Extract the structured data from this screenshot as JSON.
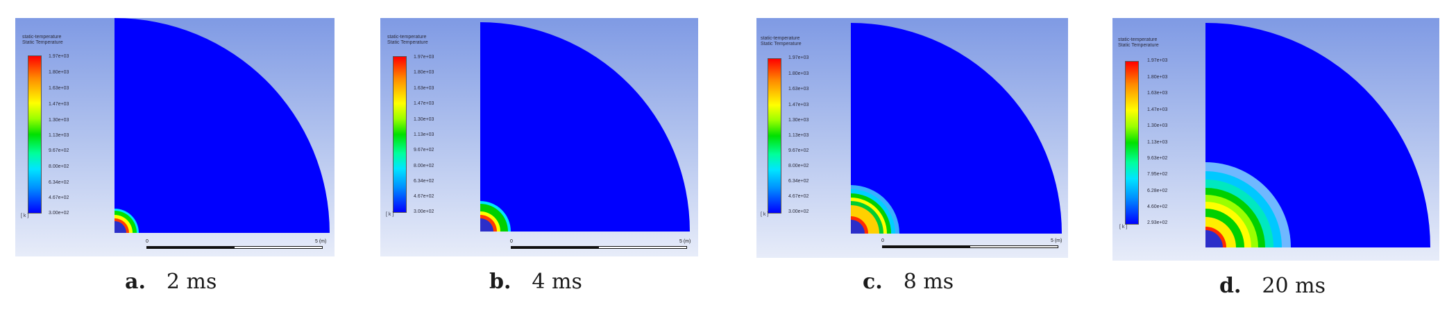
{
  "legend": {
    "title_line1": "static-temperature",
    "title_line2": "Static Temperature",
    "unit": "[ k ]"
  },
  "panels": [
    {
      "letter": "a.",
      "time": "2 ms",
      "ticks": [
        "1.97e+03",
        "1.80e+03",
        "1.63e+03",
        "1.47e+03",
        "1.30e+03",
        "1.13e+03",
        "9.67e+02",
        "8.00e+02",
        "6.34e+02",
        "4.67e+02",
        "3.00e+02"
      ],
      "scale_start": "0",
      "scale_end": "5 (m)",
      "hot_zone_relative_extent": 0.09
    },
    {
      "letter": "b.",
      "time": "4 ms",
      "ticks": [
        "1.97e+03",
        "1.80e+03",
        "1.63e+03",
        "1.47e+03",
        "1.30e+03",
        "1.13e+03",
        "9.67e+02",
        "8.00e+02",
        "6.34e+02",
        "4.67e+02",
        "3.00e+02"
      ],
      "scale_start": "0",
      "scale_end": "5 (m)",
      "hot_zone_relative_extent": 0.14
    },
    {
      "letter": "c.",
      "time": "8 ms",
      "ticks": [
        "1.97e+03",
        "1.80e+03",
        "1.63e+03",
        "1.47e+03",
        "1.30e+03",
        "1.13e+03",
        "9.67e+02",
        "8.00e+02",
        "6.34e+02",
        "4.67e+02",
        "3.00e+02"
      ],
      "scale_start": "0",
      "scale_end": "5 (m)",
      "hot_zone_relative_extent": 0.22
    },
    {
      "letter": "d.",
      "time": "20 ms",
      "ticks": [
        "1.97e+03",
        "1.80e+03",
        "1.63e+03",
        "1.47e+03",
        "1.30e+03",
        "1.13e+03",
        "9.63e+02",
        "7.95e+02",
        "6.28e+02",
        "4.60e+02",
        "2.93e+02"
      ],
      "scale_start": "",
      "scale_end": "",
      "hot_zone_relative_extent": 0.37
    }
  ],
  "colors": {
    "background_blue": "#0000ff",
    "hot": "#ff0000",
    "warm": "#ffff00",
    "mid": "#00e000",
    "cool": "#00e5ff"
  }
}
